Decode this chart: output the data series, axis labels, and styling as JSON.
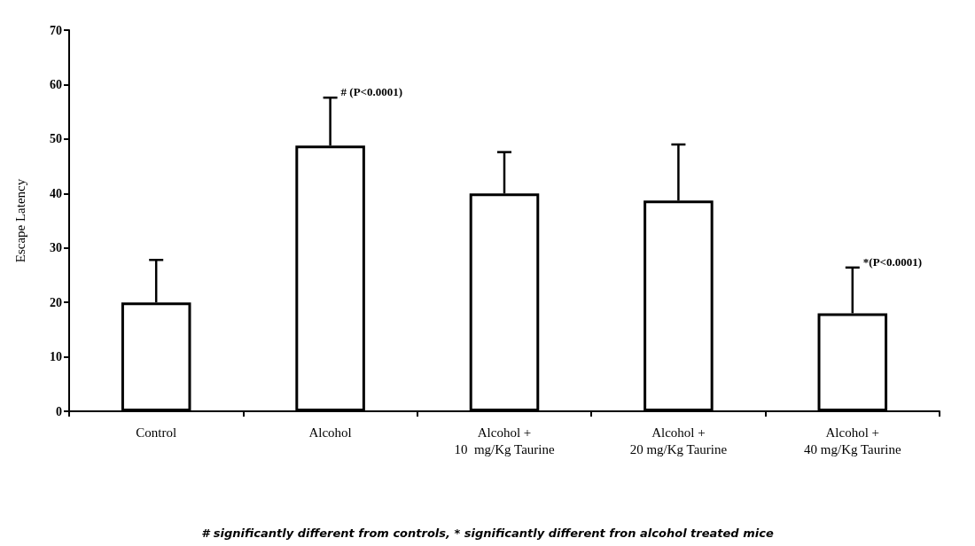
{
  "chart_data": {
    "type": "bar",
    "ylabel": "Escape Latency",
    "categories": [
      "Control",
      "Alcohol",
      "Alcohol +\n10  mg/Kg Taurine",
      "Alcohol +\n20 mg/Kg Taurine",
      "Alcohol +\n40 mg/Kg Taurine"
    ],
    "values": [
      20,
      48.8,
      40,
      38.7,
      18
    ],
    "errors": [
      [
        20,
        27.8
      ],
      [
        48.8,
        57.6
      ],
      [
        40,
        47.6
      ],
      [
        38.7,
        49
      ],
      [
        18,
        26.4
      ]
    ],
    "color": "#ffffff",
    "ylim": [
      0,
      70
    ],
    "yticks": [
      0,
      10,
      20,
      30,
      40,
      50,
      60,
      70
    ],
    "grid": false,
    "annotations": [
      {
        "text": "# (P<0.0001)",
        "x": "Alcohol",
        "y": 57.6
      },
      {
        "text": "*(P<0.0001)",
        "x": "Alcohol +\n40 mg/Kg Taurine",
        "y": 26.4
      },
      "# significantly different from controls, * significantly different fron alcohol treated mice"
    ]
  }
}
